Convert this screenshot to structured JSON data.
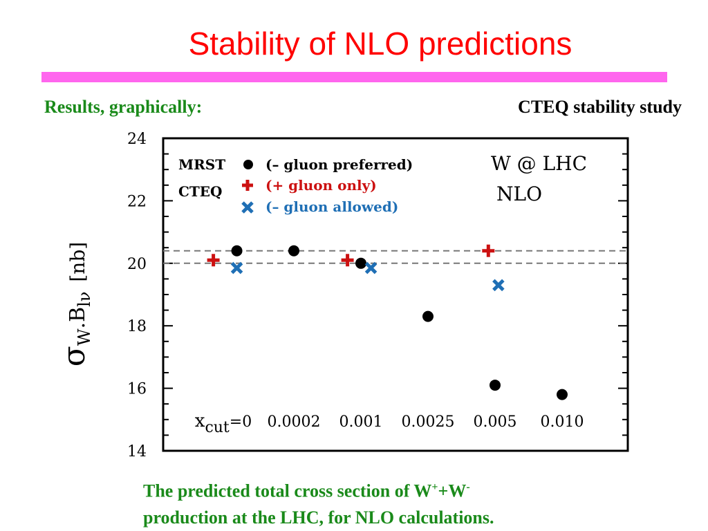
{
  "slide": {
    "title": "Stability of NLO predictions",
    "subtitle_left": "Results, graphically:",
    "subtitle_right": "CTEQ stability study",
    "caption_line1_a": "The predicted total cross section of W",
    "caption_sup_plus": "+",
    "caption_line1_b": "+W",
    "caption_sup_minus": "-",
    "caption_line2": "production at the LHC, for NLO calculations.",
    "colors": {
      "title": "#ff0000",
      "rule": "#ff66ee",
      "green_text": "#1a8a1a"
    }
  },
  "chart_data": {
    "type": "scatter",
    "ylim": [
      14,
      24
    ],
    "yticks": [
      "14",
      "16",
      "18",
      "20",
      "22",
      "24"
    ],
    "ylabel": {
      "main": "σ",
      "sub1": "W",
      "mid": ".B",
      "sub2": "lν",
      "unit": "[nb]"
    },
    "categories": [
      "x",
      "0.0002",
      "0.001",
      "0.0025",
      "0.005",
      "0.010"
    ],
    "first_category_prefix": "x",
    "first_category_sub": "cut",
    "first_category_value": "=0",
    "reference_lines": [
      20.4,
      20.0
    ],
    "annotation": {
      "line1": "W @ LHC",
      "line2": "NLO"
    },
    "legend": {
      "placement": "top-left",
      "entries": [
        {
          "group": "MRST",
          "label": "(– gluon preferred)",
          "marker": "circle",
          "color": "#000000"
        },
        {
          "group": "CTEQ",
          "label": "(+ gluon only)",
          "marker": "plus",
          "color": "#cc1111"
        },
        {
          "group": "",
          "label": "(– gluon allowed)",
          "marker": "cross",
          "color": "#1f6fb5"
        }
      ]
    },
    "series": [
      {
        "marker": "circle",
        "color": "#000000",
        "points": [
          {
            "x": 0.15,
            "y": 20.4
          },
          {
            "x": 1.0,
            "y": 20.4
          },
          {
            "x": 2.0,
            "y": 20.0
          },
          {
            "x": 3.0,
            "y": 18.3
          },
          {
            "x": 4.0,
            "y": 16.1
          },
          {
            "x": 5.0,
            "y": 15.8
          }
        ]
      },
      {
        "marker": "plus",
        "color": "#cc1111",
        "points": [
          {
            "x": -0.2,
            "y": 20.1
          },
          {
            "x": 1.8,
            "y": 20.1
          },
          {
            "x": 3.9,
            "y": 20.4
          }
        ]
      },
      {
        "marker": "cross",
        "color": "#1f6fb5",
        "points": [
          {
            "x": 0.15,
            "y": 19.85
          },
          {
            "x": 2.15,
            "y": 19.85
          },
          {
            "x": 4.05,
            "y": 19.3
          }
        ]
      }
    ]
  }
}
